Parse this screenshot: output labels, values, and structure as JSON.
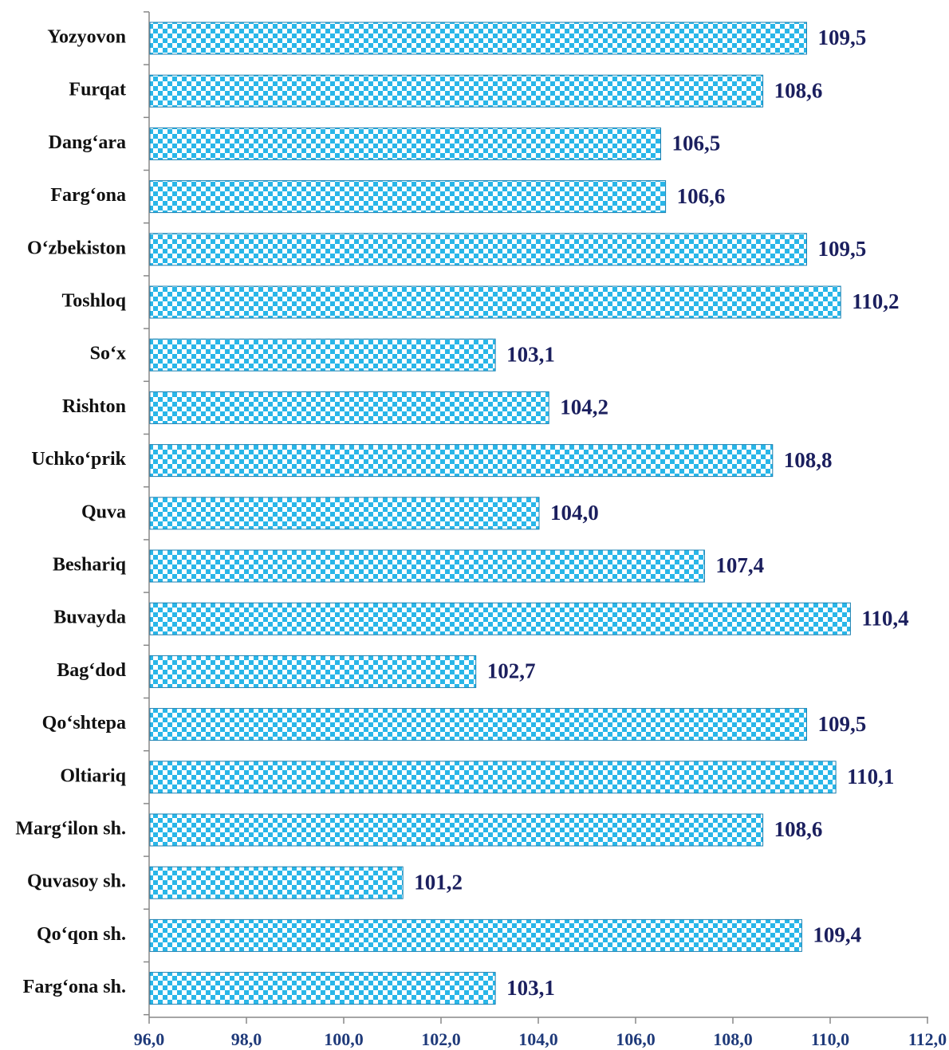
{
  "chart_data": {
    "type": "barh",
    "categories": [
      "Yozyovon",
      "Furqat",
      "Dang‘ara",
      "Farg‘ona",
      "O‘zbekiston",
      "Toshloq",
      "So‘x",
      "Rishton",
      "Uchko‘prik",
      "Quva",
      "Beshariq",
      "Buvayda",
      "Bag‘dod",
      "Qo‘shtepa",
      "Oltiariq",
      "Marg‘ilon sh.",
      "Quvasoy sh.",
      "Qo‘qon sh.",
      "Farg‘ona sh."
    ],
    "values": [
      109.5,
      108.6,
      106.5,
      106.6,
      109.5,
      110.2,
      103.1,
      104.2,
      108.8,
      104.0,
      107.4,
      110.4,
      102.7,
      109.5,
      110.1,
      108.6,
      101.2,
      109.4,
      103.1
    ],
    "value_labels": [
      "109,5",
      "108,6",
      "106,5",
      "106,6",
      "109,5",
      "110,2",
      "103,1",
      "104,2",
      "108,8",
      "104,0",
      "107,4",
      "110,4",
      "102,7",
      "109,5",
      "110,1",
      "108,6",
      "101,2",
      "109,4",
      "103,1"
    ],
    "color": "#29b6e8",
    "xlim": [
      96,
      112
    ],
    "xticks": [
      {
        "value": 96,
        "label": "96,0"
      },
      {
        "value": 98,
        "label": "98,0"
      },
      {
        "value": 100,
        "label": "100,0"
      },
      {
        "value": 102,
        "label": "102,0"
      },
      {
        "value": 104,
        "label": "104,0"
      },
      {
        "value": 106,
        "label": "106,0"
      },
      {
        "value": 108,
        "label": "108,0"
      },
      {
        "value": 110,
        "label": "110,0"
      },
      {
        "value": 112,
        "label": "112,0"
      }
    ]
  }
}
